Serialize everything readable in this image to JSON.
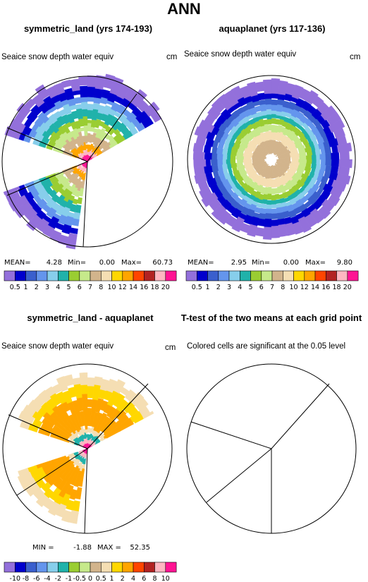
{
  "title": "ANN",
  "panels": [
    {
      "title": "symmetric_land (yrs 174-193)",
      "varname": "Seaice snow depth water equiv",
      "units": "cm",
      "stats": {
        "mean_label": "MEAN=",
        "mean": "4.28",
        "min_label": "Min=",
        "min": "0.00",
        "max_label": "Max=",
        "max": "60.73"
      }
    },
    {
      "title": "aquaplanet (yrs 117-136)",
      "varname": "Seaice snow depth water equiv",
      "units": "cm",
      "stats": {
        "mean_label": "MEAN=",
        "mean": "2.95",
        "min_label": "Min=",
        "min": "0.00",
        "max_label": "Max=",
        "max": "9.80"
      }
    },
    {
      "title": "symmetric_land - aquaplanet",
      "varname": "Seaice snow depth water equiv",
      "units": "cm",
      "stats": {
        "min_label": "MIN =",
        "min": "-1.88",
        "max_label": "MAX =",
        "max": "52.35"
      }
    },
    {
      "title": "T-test of the two means at each grid point",
      "varname": "Colored cells are significant at the 0.05 level",
      "units": ""
    }
  ],
  "colorbar_levels": [
    "0.5",
    "1",
    "2",
    "3",
    "4",
    "5",
    "6",
    "7",
    "8",
    "10",
    "12",
    "14",
    "16",
    "18",
    "20"
  ],
  "colorbar_colors": [
    "#9370db",
    "#0000cd",
    "#3a5fcd",
    "#6495ed",
    "#87ceeb",
    "#20b2aa",
    "#9acd32",
    "#c6e98b",
    "#d2b48c",
    "#f5deb3",
    "#ffd700",
    "#ffa500",
    "#ff4500",
    "#b22222",
    "#ffb6c1",
    "#ff1493"
  ],
  "diff_levels": [
    "-10",
    "-8",
    "-6",
    "-4",
    "-2",
    "-1",
    "-0.5",
    "0",
    "0.5",
    "1",
    "2",
    "4",
    "6",
    "8",
    "10"
  ],
  "diff_colors": [
    "#9370db",
    "#0000cd",
    "#3a5fcd",
    "#6495ed",
    "#87ceeb",
    "#20b2aa",
    "#9acd32",
    "#c6e98b",
    "#d2b48c",
    "#f5deb3",
    "#ffd700",
    "#ffa500",
    "#ff4500",
    "#b22222",
    "#ffb6c1",
    "#ff1493"
  ],
  "chart_data": [
    {
      "type": "heatmap",
      "projection": "polar stereographic",
      "title": "symmetric_land (yrs 174-193)",
      "variable": "Seaice snow depth water equiv",
      "units": "cm",
      "value_ranges": [
        {
          "from_pole": "0",
          "to_pole": "outer",
          "values_cm": [
            20,
            10,
            8,
            7,
            6,
            5,
            4,
            3,
            2,
            1,
            0.5
          ]
        }
      ],
      "mean": 4.28,
      "min": 0.0,
      "max": 60.73
    },
    {
      "type": "heatmap",
      "projection": "polar stereographic",
      "title": "aquaplanet (yrs 117-136)",
      "variable": "Seaice snow depth water equiv",
      "units": "cm",
      "value_ranges": [
        {
          "from_pole": "0",
          "to_pole": "outer",
          "values_cm": [
            8,
            7,
            6,
            5,
            4,
            3,
            2,
            1,
            0.5
          ]
        }
      ],
      "mean": 2.95,
      "min": 0.0,
      "max": 9.8
    },
    {
      "type": "heatmap",
      "projection": "polar stereographic",
      "title": "symmetric_land - aquaplanet",
      "variable": "Seaice snow depth water equiv",
      "units": "cm",
      "min": -1.88,
      "max": 52.35
    },
    {
      "type": "heatmap",
      "projection": "polar stereographic",
      "title": "T-test of the two means at each grid point",
      "variable": "Colored cells are significant at the 0.05 level"
    }
  ]
}
